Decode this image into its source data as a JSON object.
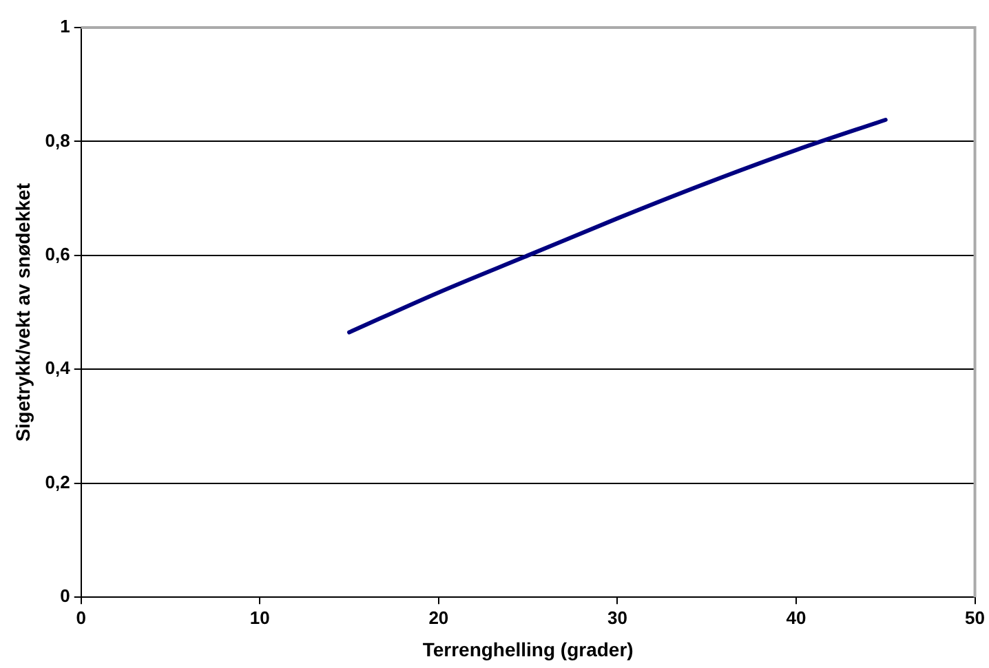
{
  "chart_data": {
    "type": "line",
    "xlabel": "Terrenghelling (grader)",
    "ylabel": "Sigetrykk/vekt av snødekket",
    "x": [
      15,
      20,
      25,
      30,
      35,
      40,
      45
    ],
    "series": [
      {
        "color": "#000080",
        "values": [
          0.465,
          0.535,
          0.6,
          0.665,
          0.727,
          0.785,
          0.838
        ]
      }
    ],
    "xlim": [
      0,
      50
    ],
    "xticks": [
      0,
      10,
      20,
      30,
      40,
      50
    ],
    "ylim": [
      0,
      1
    ],
    "yticks": [
      {
        "value": 0,
        "label": "0"
      },
      {
        "value": 0.2,
        "label": "0,2"
      },
      {
        "value": 0.4,
        "label": "0,4"
      },
      {
        "value": 0.6,
        "label": "0,6"
      },
      {
        "value": 0.8,
        "label": "0,8"
      },
      {
        "value": 1,
        "label": "1"
      }
    ],
    "grid": "y",
    "legend": false,
    "marker": "none",
    "line_style": "solid"
  }
}
